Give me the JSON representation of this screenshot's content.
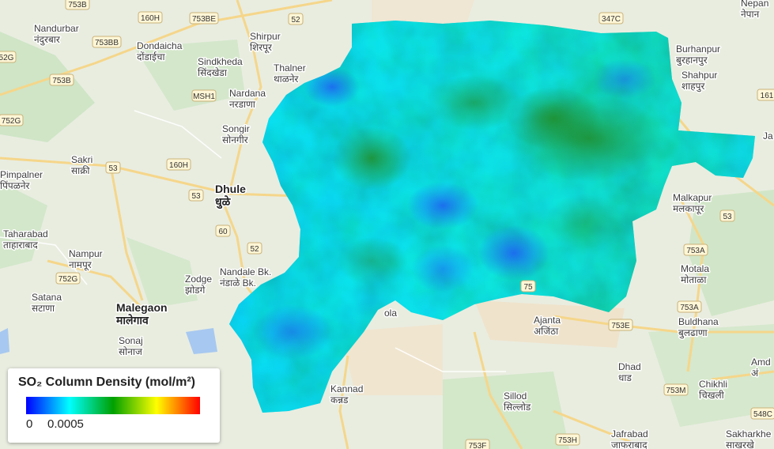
{
  "legend": {
    "title": "SO₂ Column Density (mol/m²)",
    "min_label": "0",
    "max_label": "0.0005",
    "gradient_colors": [
      "#0000ff",
      "#00ffff",
      "#00a000",
      "#ffff00",
      "#ff0000"
    ]
  },
  "places": [
    {
      "en": "Nandurbar",
      "local": "नंदुरबार"
    },
    {
      "en": "Dondaicha",
      "local": "दोंडाईचा"
    },
    {
      "en": "Shirpur",
      "local": "शिरपूर"
    },
    {
      "en": "Sindkheda",
      "local": "सिंदखेडा"
    },
    {
      "en": "Thalner",
      "local": "थाळनेर"
    },
    {
      "en": "Nardana",
      "local": "नरडाणा"
    },
    {
      "en": "Songir",
      "local": "सोनगीर"
    },
    {
      "en": "Sakri",
      "local": "साक्री"
    },
    {
      "en": "Pimpalner",
      "local": "पिंपळनेर"
    },
    {
      "en": "Dhule",
      "local": "धुळे"
    },
    {
      "en": "Taharabad",
      "local": "ताहाराबाद"
    },
    {
      "en": "Nampur",
      "local": "नामपूर"
    },
    {
      "en": "Nandale Bk.",
      "local": "नंडाळे Bk."
    },
    {
      "en": "Zodge",
      "local": "झोडगे"
    },
    {
      "en": "Satana",
      "local": "सटाणा"
    },
    {
      "en": "Malegaon",
      "local": "मालेगाव"
    },
    {
      "en": "Sonaj",
      "local": "सोनाज"
    },
    {
      "en": "Burhanpur",
      "local": "बुरहानपुर"
    },
    {
      "en": "Shahpur",
      "local": "शाहपुर"
    },
    {
      "en": "Malkapur",
      "local": "मलकापूर"
    },
    {
      "en": "Motala",
      "local": "मोताळा"
    },
    {
      "en": "Buldhana",
      "local": "बुलढाणा"
    },
    {
      "en": "Ajanta",
      "local": "अजिंठा"
    },
    {
      "en": "Dhad",
      "local": "धाड"
    },
    {
      "en": "Chikhli",
      "local": "चिखली"
    },
    {
      "en": "Sillod",
      "local": "सिल्लोड"
    },
    {
      "en": "Kannad",
      "local": "कन्नड"
    },
    {
      "en": "Jafrabad",
      "local": "जाफराबाद"
    },
    {
      "en": "Sakharkhe",
      "local": "साखरखे"
    },
    {
      "en": "Amd",
      "local": "अं"
    },
    {
      "en": "Nepan",
      "local": "नेपान"
    },
    {
      "en": "Ja",
      "local": ""
    },
    {
      "en": "ola",
      "local": ""
    }
  ],
  "road_shields": [
    "753B",
    "160H",
    "753BE",
    "52",
    "347C",
    "753BB",
    "52G",
    "753B",
    "MSH1",
    "752G",
    "53",
    "160H",
    "53",
    "60",
    "52",
    "752G",
    "753A",
    "753A",
    "753E",
    "753M",
    "753H",
    "753F",
    "548C",
    "53",
    "161",
    "75"
  ]
}
